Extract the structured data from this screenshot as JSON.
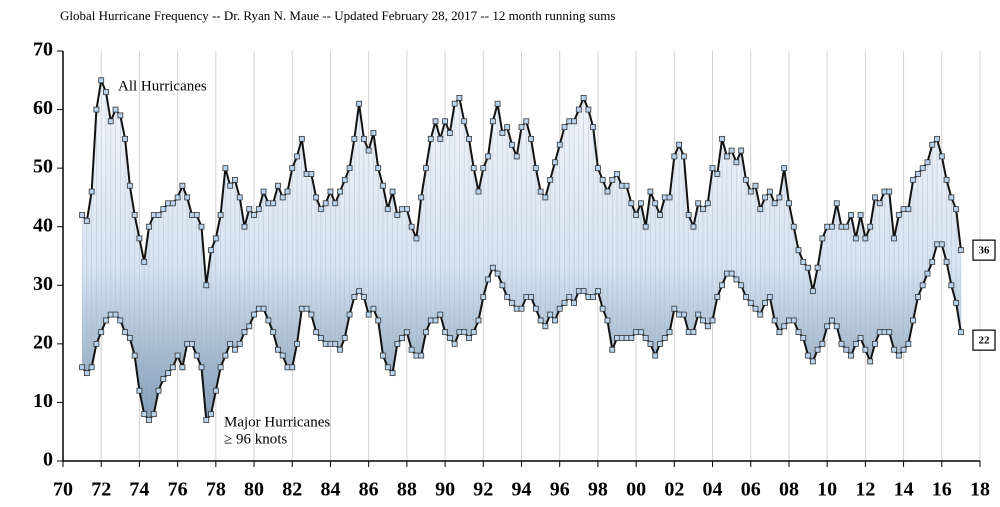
{
  "chart_data": {
    "type": "line",
    "title": "Global Hurricane Frequency -- Dr. Ryan N. Maue -- Updated February 28, 2017 -- 12 month running sums",
    "x": [
      1971,
      1971.25,
      1971.5,
      1971.75,
      1972,
      1972.25,
      1972.5,
      1972.75,
      1973,
      1973.25,
      1973.5,
      1973.75,
      1974,
      1974.25,
      1974.5,
      1974.75,
      1975,
      1975.25,
      1975.5,
      1975.75,
      1976,
      1976.25,
      1976.5,
      1976.75,
      1977,
      1977.25,
      1977.5,
      1977.75,
      1978,
      1978.25,
      1978.5,
      1978.75,
      1979,
      1979.25,
      1979.5,
      1979.75,
      1980,
      1980.25,
      1980.5,
      1980.75,
      1981,
      1981.25,
      1981.5,
      1981.75,
      1982,
      1982.25,
      1982.5,
      1982.75,
      1983,
      1983.25,
      1983.5,
      1983.75,
      1984,
      1984.25,
      1984.5,
      1984.75,
      1985,
      1985.25,
      1985.5,
      1985.75,
      1986,
      1986.25,
      1986.5,
      1986.75,
      1987,
      1987.25,
      1987.5,
      1987.75,
      1988,
      1988.25,
      1988.5,
      1988.75,
      1989,
      1989.25,
      1989.5,
      1989.75,
      1990,
      1990.25,
      1990.5,
      1990.75,
      1991,
      1991.25,
      1991.5,
      1991.75,
      1992,
      1992.25,
      1992.5,
      1992.75,
      1993,
      1993.25,
      1993.5,
      1993.75,
      1994,
      1994.25,
      1994.5,
      1994.75,
      1995,
      1995.25,
      1995.5,
      1995.75,
      1996,
      1996.25,
      1996.5,
      1996.75,
      1997,
      1997.25,
      1997.5,
      1997.75,
      1998,
      1998.25,
      1998.5,
      1998.75,
      1999,
      1999.25,
      1999.5,
      1999.75,
      2000,
      2000.25,
      2000.5,
      2000.75,
      2001,
      2001.25,
      2001.5,
      2001.75,
      2002,
      2002.25,
      2002.5,
      2002.75,
      2003,
      2003.25,
      2003.5,
      2003.75,
      2004,
      2004.25,
      2004.5,
      2004.75,
      2005,
      2005.25,
      2005.5,
      2005.75,
      2006,
      2006.25,
      2006.5,
      2006.75,
      2007,
      2007.25,
      2007.5,
      2007.75,
      2008,
      2008.25,
      2008.5,
      2008.75,
      2009,
      2009.25,
      2009.5,
      2009.75,
      2010,
      2010.25,
      2010.5,
      2010.75,
      2011,
      2011.25,
      2011.5,
      2011.75,
      2012,
      2012.25,
      2012.5,
      2012.75,
      2013,
      2013.25,
      2013.5,
      2013.75,
      2014,
      2014.25,
      2014.5,
      2014.75,
      2015,
      2015.25,
      2015.5,
      2015.75,
      2016,
      2016.25,
      2016.5,
      2016.75,
      2017
    ],
    "series": [
      {
        "name": "All Hurricanes",
        "color": "#111111",
        "values": [
          42,
          41,
          46,
          60,
          65,
          63,
          58,
          60,
          59,
          55,
          47,
          42,
          38,
          34,
          40,
          42,
          42,
          43,
          44,
          44,
          45,
          47,
          45,
          42,
          42,
          40,
          30,
          36,
          38,
          42,
          50,
          47,
          48,
          45,
          40,
          43,
          42,
          43,
          46,
          44,
          44,
          47,
          45,
          46,
          50,
          52,
          55,
          49,
          49,
          45,
          43,
          44,
          46,
          44,
          46,
          48,
          50,
          55,
          61,
          55,
          53,
          56,
          50,
          47,
          43,
          46,
          42,
          43,
          43,
          40,
          38,
          45,
          50,
          55,
          58,
          55,
          58,
          56,
          61,
          62,
          58,
          55,
          50,
          46,
          50,
          52,
          58,
          61,
          56,
          57,
          54,
          52,
          57,
          58,
          55,
          50,
          46,
          45,
          48,
          51,
          54,
          57,
          58,
          58,
          60,
          62,
          60,
          57,
          50,
          48,
          46,
          48,
          49,
          47,
          47,
          44,
          42,
          44,
          40,
          46,
          44,
          42,
          45,
          45,
          52,
          54,
          52,
          42,
          40,
          44,
          43,
          44,
          50,
          49,
          55,
          52,
          53,
          51,
          53,
          48,
          46,
          47,
          43,
          45,
          46,
          44,
          45,
          50,
          44,
          40,
          36,
          34,
          33,
          29,
          33,
          38,
          40,
          40,
          44,
          40,
          40,
          42,
          38,
          42,
          38,
          40,
          45,
          44,
          46,
          46,
          38,
          42,
          43,
          43,
          48,
          49,
          50,
          51,
          54,
          55,
          52,
          48,
          45,
          43,
          36
        ]
      },
      {
        "name": "Major Hurricanes",
        "color": "#111111",
        "values": [
          16,
          15,
          16,
          20,
          22,
          24,
          25,
          25,
          24,
          22,
          21,
          18,
          12,
          8,
          7,
          8,
          12,
          14,
          15,
          16,
          18,
          16,
          20,
          20,
          18,
          16,
          7,
          8,
          12,
          16,
          18,
          20,
          19,
          20,
          22,
          23,
          25,
          26,
          26,
          24,
          22,
          19,
          18,
          16,
          16,
          20,
          26,
          26,
          25,
          22,
          21,
          20,
          20,
          20,
          19,
          21,
          25,
          28,
          29,
          28,
          25,
          26,
          24,
          18,
          16,
          15,
          20,
          21,
          22,
          19,
          18,
          18,
          22,
          24,
          24,
          25,
          22,
          21,
          20,
          22,
          22,
          21,
          22,
          24,
          28,
          31,
          33,
          32,
          30,
          28,
          27,
          26,
          26,
          28,
          28,
          26,
          24,
          23,
          25,
          24,
          26,
          27,
          28,
          27,
          29,
          29,
          28,
          28,
          29,
          26,
          24,
          19,
          21,
          21,
          21,
          21,
          22,
          22,
          21,
          20,
          18,
          20,
          21,
          22,
          26,
          25,
          25,
          22,
          22,
          25,
          24,
          23,
          24,
          28,
          30,
          32,
          32,
          31,
          30,
          28,
          27,
          26,
          25,
          27,
          28,
          24,
          22,
          23,
          24,
          24,
          22,
          21,
          18,
          17,
          19,
          20,
          23,
          24,
          23,
          20,
          19,
          18,
          20,
          21,
          19,
          17,
          20,
          22,
          22,
          22,
          19,
          18,
          19,
          20,
          24,
          28,
          30,
          32,
          34,
          37,
          37,
          34,
          30,
          27,
          22
        ]
      }
    ],
    "annotations": [
      "≥ 96 knots"
    ],
    "marker_color": "#b9d4ef",
    "xlim": [
      1970,
      2018
    ],
    "xticks": [
      {
        "value": 1970,
        "label": "70"
      },
      {
        "value": 1972,
        "label": "72"
      },
      {
        "value": 1974,
        "label": "74"
      },
      {
        "value": 1976,
        "label": "76"
      },
      {
        "value": 1978,
        "label": "78"
      },
      {
        "value": 1980,
        "label": "80"
      },
      {
        "value": 1982,
        "label": "82"
      },
      {
        "value": 1984,
        "label": "84"
      },
      {
        "value": 1986,
        "label": "86"
      },
      {
        "value": 1988,
        "label": "88"
      },
      {
        "value": 1990,
        "label": "90"
      },
      {
        "value": 1992,
        "label": "92"
      },
      {
        "value": 1994,
        "label": "94"
      },
      {
        "value": 1996,
        "label": "96"
      },
      {
        "value": 1998,
        "label": "98"
      },
      {
        "value": 2000,
        "label": "00"
      },
      {
        "value": 2002,
        "label": "02"
      },
      {
        "value": 2004,
        "label": "04"
      },
      {
        "value": 2006,
        "label": "06"
      },
      {
        "value": 2008,
        "label": "08"
      },
      {
        "value": 2010,
        "label": "10"
      },
      {
        "value": 2012,
        "label": "12"
      },
      {
        "value": 2014,
        "label": "14"
      },
      {
        "value": 2016,
        "label": "16"
      },
      {
        "value": 2018,
        "label": "18"
      }
    ],
    "ylim": [
      0,
      70
    ],
    "yticks": [
      0,
      10,
      20,
      30,
      40,
      50,
      60,
      70
    ],
    "grid": true
  }
}
